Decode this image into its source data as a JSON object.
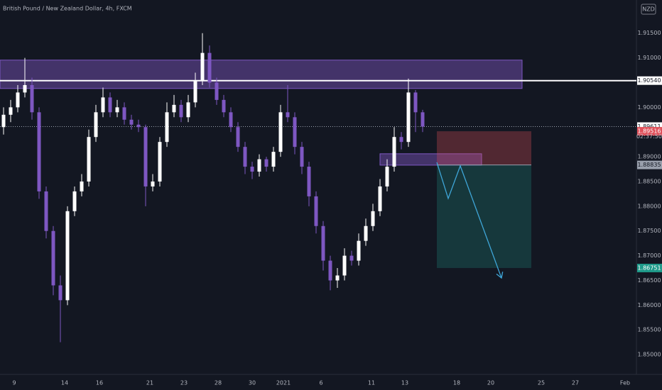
{
  "chart_data": {
    "type": "candlestick",
    "title": "British Pound / New Zealand Dollar, 4h, FXCM",
    "currency": "NZD",
    "up_color": "#ffffff",
    "down_color": "#7e57c2",
    "open": [
      1.896,
      1.8985,
      1.9,
      1.903,
      1.9045,
      1.899,
      1.883,
      1.875,
      1.864,
      1.861,
      1.879,
      1.883,
      1.885,
      1.894,
      1.899,
      1.902,
      1.899,
      1.9,
      1.8975,
      1.8965,
      1.896,
      1.884,
      1.885,
      1.893,
      1.899,
      1.9005,
      1.898,
      1.901,
      1.9055,
      1.911,
      1.905,
      1.9015,
      1.899,
      1.896,
      1.892,
      1.888,
      1.887,
      1.8895,
      1.888,
      1.891,
      1.899,
      1.898,
      1.892,
      1.888,
      1.882,
      1.876,
      1.869,
      1.865,
      1.866,
      1.87,
      1.869,
      1.873,
      1.876,
      1.879,
      1.884,
      1.888,
      1.894,
      1.893,
      1.903,
      1.899
    ],
    "high": [
      1.9,
      1.9015,
      1.9045,
      1.91,
      1.906,
      1.9,
      1.884,
      1.876,
      1.866,
      1.88,
      1.884,
      1.8865,
      1.8955,
      1.9005,
      1.904,
      1.903,
      1.9015,
      1.901,
      1.8985,
      1.8975,
      1.8965,
      1.8865,
      1.894,
      1.901,
      1.9025,
      1.9015,
      1.9025,
      1.907,
      1.915,
      1.9125,
      1.906,
      1.9025,
      1.9,
      1.897,
      1.893,
      1.889,
      1.8905,
      1.89,
      1.892,
      1.9005,
      1.9045,
      1.899,
      1.893,
      1.889,
      1.883,
      1.877,
      1.87,
      1.8675,
      1.8715,
      1.871,
      1.8745,
      1.8775,
      1.8805,
      1.8855,
      1.8895,
      1.896,
      1.895,
      1.9058,
      1.9035,
      1.8995
    ],
    "low": [
      1.8945,
      1.897,
      1.899,
      1.902,
      1.8975,
      1.8815,
      1.8735,
      1.862,
      1.8525,
      1.86,
      1.878,
      1.882,
      1.884,
      1.893,
      1.898,
      1.898,
      1.898,
      1.8965,
      1.8955,
      1.895,
      1.88,
      1.883,
      1.884,
      1.892,
      1.898,
      1.897,
      1.897,
      1.9,
      1.9045,
      1.904,
      1.9005,
      1.898,
      1.895,
      1.891,
      1.8865,
      1.8855,
      1.886,
      1.887,
      1.887,
      1.89,
      1.897,
      1.8905,
      1.8865,
      1.88,
      1.8745,
      1.867,
      1.863,
      1.8635,
      1.865,
      1.868,
      1.868,
      1.872,
      1.875,
      1.878,
      1.883,
      1.887,
      1.8915,
      1.892,
      1.895,
      1.895
    ],
    "close": [
      1.8985,
      1.9,
      1.903,
      1.9045,
      1.899,
      1.883,
      1.875,
      1.864,
      1.861,
      1.879,
      1.883,
      1.885,
      1.894,
      1.899,
      1.902,
      1.899,
      1.9,
      1.8975,
      1.8965,
      1.896,
      1.884,
      1.885,
      1.893,
      1.899,
      1.9005,
      1.898,
      1.901,
      1.9055,
      1.911,
      1.905,
      1.9015,
      1.899,
      1.896,
      1.892,
      1.888,
      1.887,
      1.8895,
      1.888,
      1.891,
      1.899,
      1.898,
      1.892,
      1.888,
      1.882,
      1.876,
      1.869,
      1.865,
      1.866,
      1.87,
      1.869,
      1.873,
      1.876,
      1.879,
      1.884,
      1.888,
      1.894,
      1.893,
      1.903,
      1.899,
      1.8961
    ],
    "xlim": [
      0,
      89.6
    ],
    "xticks": [
      {
        "value": 2,
        "label": "9"
      },
      {
        "value": 9.1,
        "label": "14"
      },
      {
        "value": 14,
        "label": "16"
      },
      {
        "value": 21.1,
        "label": "21"
      },
      {
        "value": 25.9,
        "label": "23"
      },
      {
        "value": 30.7,
        "label": "28"
      },
      {
        "value": 35.5,
        "label": "30"
      },
      {
        "value": 39.9,
        "label": "2021"
      },
      {
        "value": 45.2,
        "label": "6"
      },
      {
        "value": 52.3,
        "label": "11"
      },
      {
        "value": 57,
        "label": "13"
      },
      {
        "value": 64.3,
        "label": "18"
      },
      {
        "value": 69.1,
        "label": "20"
      },
      {
        "value": 76.2,
        "label": "25"
      },
      {
        "value": 81,
        "label": "27"
      },
      {
        "value": 88,
        "label": "Feb"
      }
    ],
    "ylim": [
      1.846,
      1.9217
    ],
    "yticks": [
      {
        "value": 1.915,
        "label": "1.91500"
      },
      {
        "value": 1.91,
        "label": "1.91000"
      },
      {
        "value": 1.9,
        "label": "1.90000"
      },
      {
        "value": 1.89,
        "label": "1.89000"
      },
      {
        "value": 1.885,
        "label": "1.88500"
      },
      {
        "value": 1.88,
        "label": "1.88000"
      },
      {
        "value": 1.875,
        "label": "1.87500"
      },
      {
        "value": 1.87,
        "label": "1.87000"
      },
      {
        "value": 1.865,
        "label": "1.86500"
      },
      {
        "value": 1.86,
        "label": "1.86000"
      },
      {
        "value": 1.855,
        "label": "1.85500"
      },
      {
        "value": 1.85,
        "label": "1.85000"
      }
    ],
    "price_labels": [
      {
        "value": 1.9054,
        "label": "1.90540",
        "color": "#ffffff",
        "text_color": "#131722"
      },
      {
        "value": 1.89611,
        "label": "1.89611",
        "color": "#ffffff",
        "text_color": "#131722"
      },
      {
        "value": 1.89516,
        "label": "1.89516",
        "color": "#e0505a",
        "text_color": "#ffffff"
      },
      {
        "value": 1.88835,
        "label": "1.88835",
        "color": "#9aa0ad",
        "text_color": "#131722"
      },
      {
        "value": 1.86751,
        "label": "1.86751",
        "color": "#1f9a8a",
        "text_color": "#ffffff"
      }
    ],
    "countdown": "02:37:50",
    "level_line": 1.9054,
    "current_price": 1.89611,
    "zones": [
      {
        "x": [
          0,
          73.5
        ],
        "y": [
          1.90381,
          1.90955
        ],
        "color": "#7e57c2"
      },
      {
        "x": [
          53.5,
          67.8
        ],
        "y": [
          1.88831,
          1.89061
        ],
        "color": "#7e57c2"
      }
    ],
    "position": {
      "x": [
        61.5,
        74.8
      ],
      "entry": 1.88835,
      "stop": 1.89516,
      "target": 1.86751
    },
    "arrow": {
      "x": [
        61.5,
        63.1,
        64.8,
        70.6
      ],
      "y": [
        1.88888,
        1.88157,
        1.88817,
        1.86549
      ],
      "color": "#3fa6d8"
    }
  }
}
